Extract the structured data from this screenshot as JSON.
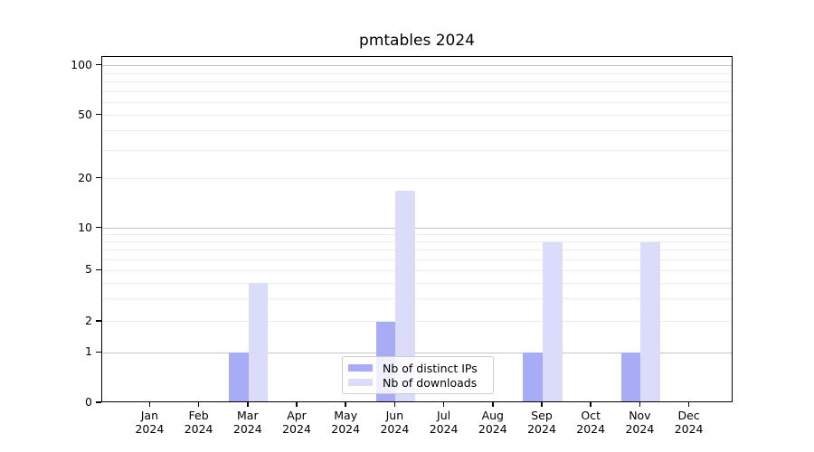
{
  "chart_data": {
    "type": "bar",
    "title": "pmtables 2024",
    "categories": [
      "Jan",
      "Feb",
      "Mar",
      "Apr",
      "May",
      "Jun",
      "Jul",
      "Aug",
      "Sep",
      "Oct",
      "Nov",
      "Dec"
    ],
    "category_year": "2024",
    "series": [
      {
        "name": "Nb of distinct IPs",
        "color": "#a8abf5",
        "values": [
          0,
          0,
          1,
          0,
          0,
          2,
          0,
          0,
          1,
          0,
          1,
          0
        ]
      },
      {
        "name": "Nb of downloads",
        "color": "#dadcfa",
        "values": [
          0,
          0,
          4,
          0,
          0,
          17,
          0,
          0,
          8,
          0,
          8,
          0
        ]
      }
    ],
    "y_ticks": [
      {
        "label": "100",
        "value": 100
      },
      {
        "label": "50",
        "value": 50
      },
      {
        "label": "20",
        "value": 20
      },
      {
        "label": "10",
        "value": 10
      },
      {
        "label": "5",
        "value": 5
      },
      {
        "label": "2",
        "value": 2
      },
      {
        "label": "1",
        "value": 1
      },
      {
        "label": "0",
        "value": 0
      }
    ],
    "ylim": [
      0,
      110
    ],
    "yscale": "log-like (compressed near zero)",
    "grid": "horizontal, minor + major",
    "legend_position": "bottom-center inside plot",
    "xlabel": "",
    "ylabel": ""
  }
}
